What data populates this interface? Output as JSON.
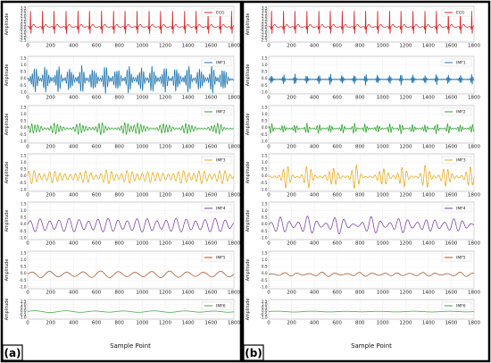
{
  "figure": {
    "panel_labels": [
      "(a)",
      "(b)"
    ]
  },
  "chart_data": [
    {
      "type": "line",
      "panel": "(a)",
      "x_axis_label": "Sample Point",
      "y_axis_label": "Amplitude",
      "x_ticks": [
        0,
        200,
        400,
        600,
        800,
        1000,
        1200,
        1400,
        1600,
        1800
      ],
      "xlim": [
        0,
        1800
      ],
      "grid": true,
      "legend_position": "top-right",
      "subplots": [
        {
          "label": "ECG",
          "color": "#d62728",
          "yticks": [
            "3.5",
            "3.0",
            "2.5",
            "2.0",
            "1.5",
            "1.0",
            "0.5",
            "0.0",
            "-0.5",
            "-1.0",
            "-1.5",
            "-2.0",
            "-2.5"
          ],
          "ylim": [
            -2.5,
            3.5
          ],
          "signal": "ecg",
          "amplitude": 1.6,
          "beats": [
            25,
            130,
            230,
            335,
            440,
            540,
            645,
            750,
            850,
            955,
            1060,
            1160,
            1265,
            1370,
            1470,
            1575,
            1680,
            1780
          ]
        },
        {
          "label": "IMF1",
          "color": "#1f77b4",
          "yticks": [
            "1.5",
            "1.0",
            "0.5",
            "0.0",
            "-0.5",
            "-1.0"
          ],
          "ylim": [
            -1.0,
            1.6
          ],
          "signal": "imf",
          "amplitude": 0.95,
          "period": 18,
          "bursts": [
            60,
            160,
            265,
            370,
            470,
            575,
            680,
            780,
            885,
            990,
            1090,
            1195,
            1300,
            1400,
            1505,
            1610,
            1710
          ],
          "burst_width": 35
        },
        {
          "label": "IMF2",
          "color": "#2ca02c",
          "yticks": [
            "1.5",
            "1.0",
            "0.5",
            "0.0",
            "-0.5",
            "-1.0"
          ],
          "ylim": [
            -1.0,
            1.6
          ],
          "signal": "imf",
          "amplitude": 0.4,
          "period": 28,
          "bursts": [
            60,
            250,
            460,
            640,
            860,
            980,
            1200,
            1400,
            1650
          ],
          "burst_width": 70
        },
        {
          "label": "IMF3",
          "color": "#e6a817",
          "yticks": [
            "1.5",
            "1.0",
            "0.5",
            "0.0",
            "-0.5",
            "-1.0"
          ],
          "ylim": [
            -1.0,
            1.6
          ],
          "signal": "imf",
          "amplitude": 0.45,
          "period": 45,
          "bursts": [
            50,
            250,
            480,
            700,
            900,
            1100,
            1320,
            1500,
            1700
          ],
          "burst_width": 110
        },
        {
          "label": "IMF4",
          "color": "#7b3fa0",
          "yticks": [
            "1.5",
            "1.0",
            "0.5",
            "0.0",
            "-0.5",
            "-1.0"
          ],
          "ylim": [
            -1.0,
            1.6
          ],
          "signal": "imf",
          "amplitude": 0.45,
          "period": 85,
          "bursts": [
            100,
            300,
            500,
            700,
            900,
            1100,
            1300,
            1500,
            1700
          ],
          "burst_width": 150
        },
        {
          "label": "IMF5",
          "color": "#a0522d",
          "yticks": [
            "1.5",
            "1.0",
            "0.5",
            "0.0",
            "-0.5",
            "-1.0"
          ],
          "ylim": [
            -1.0,
            1.6
          ],
          "signal": "imf",
          "amplitude": 0.22,
          "period": 150,
          "bursts": [
            150,
            350,
            600,
            900,
            1150,
            1400,
            1650
          ],
          "burst_width": 220
        },
        {
          "label": "IMF6",
          "color": "#3fa83f",
          "yticks": [
            "1.5",
            "1.0",
            "0.5",
            "0.0",
            "-0.5",
            "-1.0"
          ],
          "ylim": [
            -1.0,
            1.6
          ],
          "signal": "imf",
          "amplitude": 0.12,
          "period": 260,
          "bursts": [],
          "burst_width": 0
        }
      ]
    },
    {
      "type": "line",
      "panel": "(b)",
      "x_axis_label": "Sample Point",
      "y_axis_label": "Amplitude",
      "x_ticks": [
        0,
        200,
        400,
        600,
        800,
        1000,
        1200,
        1400,
        1600,
        1800
      ],
      "xlim": [
        0,
        1800
      ],
      "grid": true,
      "legend_position": "top-right",
      "subplots": [
        {
          "label": "ECG",
          "color": "#d62728",
          "yticks": [
            "3.5",
            "3.0",
            "2.5",
            "2.0",
            "1.5",
            "1.0",
            "0.5",
            "0.0",
            "-0.5",
            "-1.0",
            "-1.5",
            "-2.0",
            "-2.5"
          ],
          "ylim": [
            -2.5,
            3.5
          ],
          "signal": "ecg",
          "amplitude": 1.6,
          "beats": [
            25,
            130,
            230,
            335,
            440,
            540,
            645,
            750,
            850,
            955,
            1060,
            1160,
            1265,
            1370,
            1470,
            1575,
            1680,
            1780
          ]
        },
        {
          "label": "IMF1",
          "color": "#1f77b4",
          "yticks": [
            "1.5",
            "1.0",
            "0.5",
            "0.0",
            "-0.5",
            "-1.0"
          ],
          "ylim": [
            -1.0,
            1.6
          ],
          "signal": "imf",
          "amplitude": 0.4,
          "period": 12,
          "bursts": [
            25,
            130,
            230,
            335,
            440,
            540,
            645,
            750,
            850,
            955,
            1060,
            1160,
            1265,
            1370,
            1470,
            1575,
            1680,
            1780
          ],
          "burst_width": 14
        },
        {
          "label": "IMF2",
          "color": "#2ca02c",
          "yticks": [
            "1.5",
            "1.0",
            "0.5",
            "0.0",
            "-0.5",
            "-1.0"
          ],
          "ylim": [
            -1.0,
            1.6
          ],
          "signal": "imf",
          "amplitude": 0.35,
          "period": 22,
          "bursts": [
            25,
            130,
            230,
            335,
            440,
            540,
            645,
            750,
            850,
            955,
            1060,
            1160,
            1265,
            1370,
            1470,
            1575,
            1680,
            1780
          ],
          "burst_width": 25
        },
        {
          "label": "IMF3",
          "color": "#e6a817",
          "yticks": [
            "1.5",
            "1.0",
            "0.5",
            "0.0",
            "-0.5",
            "-1.0"
          ],
          "ylim": [
            -1.0,
            1.6
          ],
          "signal": "imf",
          "amplitude": 0.8,
          "period": 40,
          "bursts": [
            150,
            350,
            560,
            760,
            1000,
            1170,
            1380,
            1560,
            1760
          ],
          "burst_width": 55
        },
        {
          "label": "IMF4",
          "color": "#7b3fa0",
          "yticks": [
            "1.5",
            "1.0",
            "0.5",
            "0.0",
            "-0.5",
            "-1.0"
          ],
          "ylim": [
            -1.0,
            1.6
          ],
          "signal": "imf",
          "amplitude": 0.6,
          "period": 80,
          "bursts": [
            120,
            350,
            600,
            900,
            1150,
            1400,
            1650
          ],
          "burst_width": 110
        },
        {
          "label": "IMF5",
          "color": "#a0522d",
          "yticks": [
            "1.5",
            "1.0",
            "0.5",
            "0.0",
            "-0.5",
            "-1.0"
          ],
          "ylim": [
            -1.0,
            1.6
          ],
          "signal": "imf",
          "amplitude": 0.15,
          "period": 110,
          "bursts": [
            200,
            500,
            800,
            1100,
            1400,
            1700
          ],
          "burst_width": 150
        },
        {
          "label": "IMF6",
          "color": "#3fa83f",
          "yticks": [
            "1.5",
            "1.0",
            "0.5",
            "0.0",
            "-0.5",
            "-1.0"
          ],
          "ylim": [
            -1.0,
            1.6
          ],
          "signal": "imf",
          "amplitude": 0.06,
          "period": 300,
          "bursts": [],
          "burst_width": 0
        }
      ]
    }
  ]
}
